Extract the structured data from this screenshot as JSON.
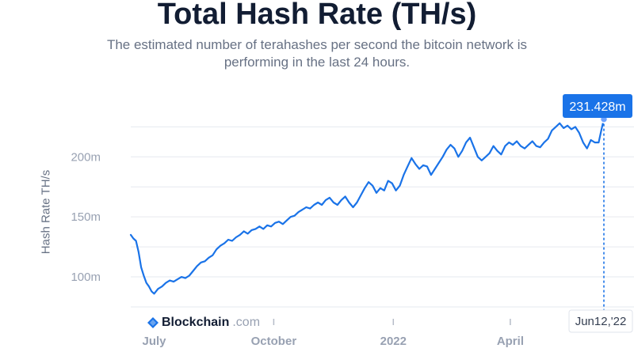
{
  "header": {
    "title": "Total Hash Rate (TH/s)",
    "subtitle": "The estimated number of terahashes per second the bitcoin network is performing in the last 24 hours."
  },
  "watermark": {
    "brand": "Blockchain",
    "domain": ".com"
  },
  "colors": {
    "line": "#1a73e8",
    "badge": "#1a73e8",
    "grid": "#e6e9ef",
    "axis_text": "#98a1b2"
  },
  "chart_data": {
    "type": "line",
    "title": "Total Hash Rate (TH/s)",
    "ylabel": "Hash Rate TH/s",
    "ylim": [
      75000000,
      245000000
    ],
    "y_ticks": [
      {
        "value": 100000000,
        "label": "100m"
      },
      {
        "value": 150000000,
        "label": "150m"
      },
      {
        "value": 200000000,
        "label": "200m"
      }
    ],
    "x_ticks": [
      {
        "date": "2021-07-01",
        "label": "July"
      },
      {
        "date": "2021-10-01",
        "label": "October"
      },
      {
        "date": "2022-01-01",
        "label": "2022"
      },
      {
        "date": "2022-04-01",
        "label": "April"
      }
    ],
    "x_range": [
      "2021-06-13",
      "2022-06-12"
    ],
    "grid": true,
    "series": [
      {
        "points": [
          [
            "2021-06-13",
            135
          ],
          [
            "2021-06-15",
            132
          ],
          [
            "2021-06-17",
            130
          ],
          [
            "2021-06-19",
            121
          ],
          [
            "2021-06-21",
            108
          ],
          [
            "2021-06-23",
            101
          ],
          [
            "2021-06-25",
            95
          ],
          [
            "2021-06-27",
            92
          ],
          [
            "2021-06-29",
            88
          ],
          [
            "2021-07-01",
            86
          ],
          [
            "2021-07-04",
            90
          ],
          [
            "2021-07-07",
            92
          ],
          [
            "2021-07-10",
            95
          ],
          [
            "2021-07-13",
            97
          ],
          [
            "2021-07-16",
            96
          ],
          [
            "2021-07-19",
            98
          ],
          [
            "2021-07-22",
            100
          ],
          [
            "2021-07-25",
            99
          ],
          [
            "2021-07-28",
            101
          ],
          [
            "2021-07-31",
            105
          ],
          [
            "2021-08-03",
            109
          ],
          [
            "2021-08-06",
            112
          ],
          [
            "2021-08-09",
            113
          ],
          [
            "2021-08-12",
            116
          ],
          [
            "2021-08-15",
            118
          ],
          [
            "2021-08-18",
            123
          ],
          [
            "2021-08-21",
            126
          ],
          [
            "2021-08-24",
            128
          ],
          [
            "2021-08-27",
            131
          ],
          [
            "2021-08-30",
            130
          ],
          [
            "2021-09-02",
            133
          ],
          [
            "2021-09-05",
            135
          ],
          [
            "2021-09-08",
            138
          ],
          [
            "2021-09-11",
            136
          ],
          [
            "2021-09-14",
            139
          ],
          [
            "2021-09-17",
            140
          ],
          [
            "2021-09-20",
            142
          ],
          [
            "2021-09-23",
            140
          ],
          [
            "2021-09-26",
            143
          ],
          [
            "2021-09-29",
            142
          ],
          [
            "2021-10-02",
            145
          ],
          [
            "2021-10-05",
            146
          ],
          [
            "2021-10-08",
            144
          ],
          [
            "2021-10-11",
            147
          ],
          [
            "2021-10-14",
            150
          ],
          [
            "2021-10-17",
            151
          ],
          [
            "2021-10-20",
            154
          ],
          [
            "2021-10-23",
            156
          ],
          [
            "2021-10-26",
            158
          ],
          [
            "2021-10-29",
            157
          ],
          [
            "2021-11-01",
            160
          ],
          [
            "2021-11-04",
            162
          ],
          [
            "2021-11-07",
            160
          ],
          [
            "2021-11-10",
            164
          ],
          [
            "2021-11-13",
            166
          ],
          [
            "2021-11-16",
            162
          ],
          [
            "2021-11-19",
            160
          ],
          [
            "2021-11-22",
            164
          ],
          [
            "2021-11-25",
            167
          ],
          [
            "2021-11-28",
            162
          ],
          [
            "2021-12-01",
            158
          ],
          [
            "2021-12-04",
            162
          ],
          [
            "2021-12-07",
            168
          ],
          [
            "2021-12-10",
            174
          ],
          [
            "2021-12-13",
            179
          ],
          [
            "2021-12-16",
            176
          ],
          [
            "2021-12-19",
            170
          ],
          [
            "2021-12-22",
            174
          ],
          [
            "2021-12-25",
            172
          ],
          [
            "2021-12-28",
            180
          ],
          [
            "2021-12-31",
            178
          ],
          [
            "2022-01-03",
            172
          ],
          [
            "2022-01-06",
            176
          ],
          [
            "2022-01-09",
            185
          ],
          [
            "2022-01-12",
            192
          ],
          [
            "2022-01-15",
            199
          ],
          [
            "2022-01-18",
            194
          ],
          [
            "2022-01-21",
            190
          ],
          [
            "2022-01-24",
            193
          ],
          [
            "2022-01-27",
            192
          ],
          [
            "2022-01-30",
            185
          ],
          [
            "2022-02-02",
            190
          ],
          [
            "2022-02-05",
            195
          ],
          [
            "2022-02-08",
            200
          ],
          [
            "2022-02-11",
            206
          ],
          [
            "2022-02-14",
            210
          ],
          [
            "2022-02-17",
            207
          ],
          [
            "2022-02-20",
            200
          ],
          [
            "2022-02-23",
            205
          ],
          [
            "2022-02-26",
            212
          ],
          [
            "2022-03-01",
            216
          ],
          [
            "2022-03-04",
            208
          ],
          [
            "2022-03-07",
            200
          ],
          [
            "2022-03-10",
            197
          ],
          [
            "2022-03-13",
            200
          ],
          [
            "2022-03-16",
            203
          ],
          [
            "2022-03-19",
            209
          ],
          [
            "2022-03-22",
            205
          ],
          [
            "2022-03-25",
            202
          ],
          [
            "2022-03-28",
            209
          ],
          [
            "2022-03-31",
            212
          ],
          [
            "2022-04-03",
            210
          ],
          [
            "2022-04-06",
            213
          ],
          [
            "2022-04-09",
            209
          ],
          [
            "2022-04-12",
            207
          ],
          [
            "2022-04-15",
            210
          ],
          [
            "2022-04-18",
            213
          ],
          [
            "2022-04-21",
            209
          ],
          [
            "2022-04-24",
            208
          ],
          [
            "2022-04-27",
            212
          ],
          [
            "2022-04-30",
            215
          ],
          [
            "2022-05-03",
            222
          ],
          [
            "2022-05-06",
            225
          ],
          [
            "2022-05-09",
            228
          ],
          [
            "2022-05-12",
            224
          ],
          [
            "2022-05-15",
            226
          ],
          [
            "2022-05-18",
            223
          ],
          [
            "2022-05-21",
            225
          ],
          [
            "2022-05-24",
            220
          ],
          [
            "2022-05-27",
            212
          ],
          [
            "2022-05-30",
            207
          ],
          [
            "2022-06-02",
            214
          ],
          [
            "2022-06-05",
            212
          ],
          [
            "2022-06-08",
            212
          ],
          [
            "2022-06-10",
            222
          ],
          [
            "2022-06-12",
            231.428
          ]
        ]
      }
    ],
    "last_point": {
      "date": "2022-06-12",
      "value_label": "231.428m",
      "date_label": "Jun12,'22"
    }
  }
}
